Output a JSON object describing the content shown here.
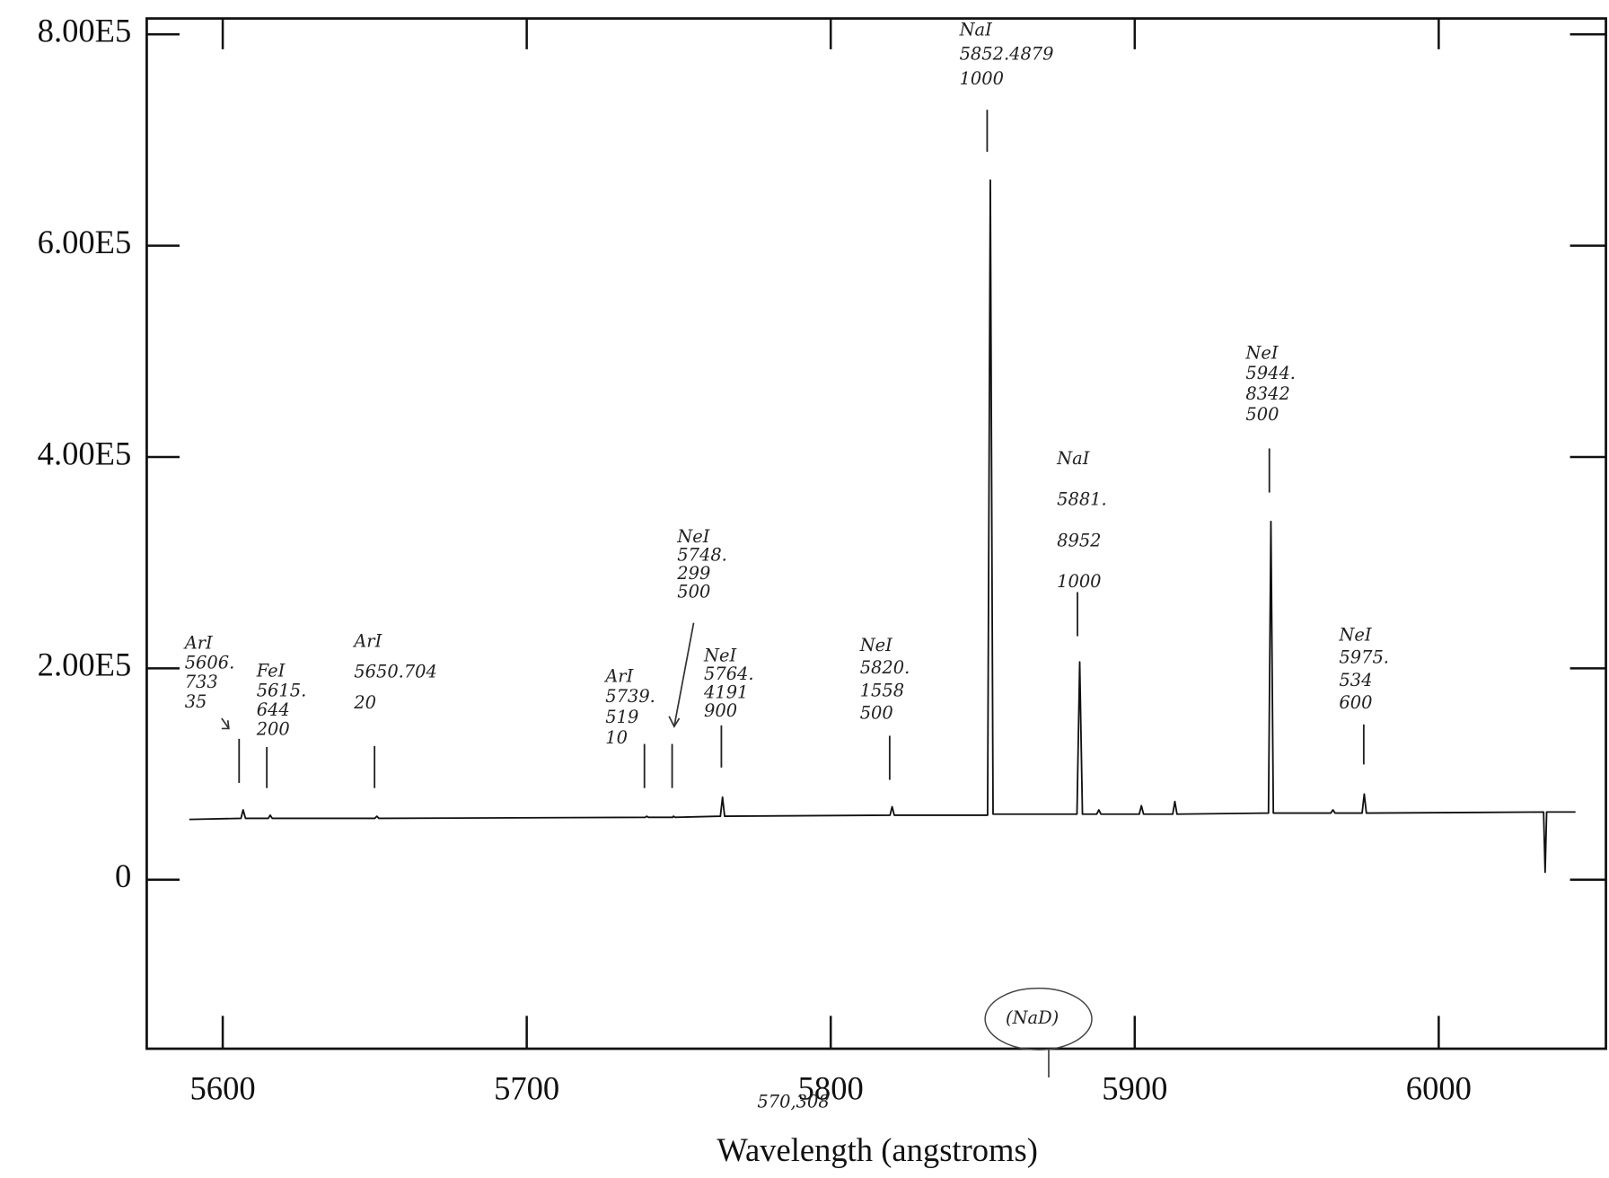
{
  "chart_data": {
    "type": "line",
    "xlabel": "Wavelength (angstroms)",
    "x": [
      5589,
      5606,
      5606.7,
      5607.5,
      5615,
      5615.6,
      5616.3,
      5650,
      5650.7,
      5651.4,
      5739,
      5739.5,
      5740,
      5748,
      5748.3,
      5748.8,
      5763.7,
      5764.4,
      5765.1,
      5819.5,
      5820.2,
      5820.9,
      5851.6,
      5852.5,
      5853.4,
      5881,
      5881.9,
      5882.8,
      5887.5,
      5888.2,
      5888.9,
      5901.5,
      5902.2,
      5902.9,
      5912.5,
      5913.2,
      5913.9,
      5944,
      5944.8,
      5945.6,
      5964.5,
      5965.2,
      5965.9,
      5974.8,
      5975.5,
      5976.2,
      6034.5,
      6035,
      6035.5,
      6045
    ],
    "values": [
      57000,
      58000,
      66000,
      58000,
      58000,
      61000,
      58000,
      58000,
      60000,
      58000,
      59000,
      60000,
      59000,
      59000,
      60000,
      59000,
      60000,
      78000,
      60000,
      61000,
      69000,
      61000,
      61000,
      662000,
      62000,
      62000,
      206000,
      62000,
      62000,
      66000,
      62000,
      62000,
      70000,
      62000,
      62000,
      74000,
      62000,
      63000,
      339000,
      63000,
      63000,
      66000,
      63000,
      63000,
      81000,
      63000,
      64000,
      7000,
      64000,
      64000
    ],
    "color": "#111111",
    "xlim": [
      5575,
      6055
    ],
    "ylim": [
      -160000,
      815000
    ],
    "xticks": [
      5600,
      5700,
      5800,
      5900,
      6000
    ],
    "yticks": [
      {
        "value": 0,
        "label": "0"
      },
      {
        "value": 200000,
        "label": "2.00E5"
      },
      {
        "value": 400000,
        "label": "4.00E5"
      },
      {
        "value": 600000,
        "label": "6.00E5"
      },
      {
        "value": 800000,
        "label": "8.00E5"
      }
    ],
    "annotations": [
      [
        "ArI",
        "5606.",
        "733",
        "35"
      ],
      [
        "FeI",
        "5615.",
        "644",
        "200"
      ],
      [
        "ArI",
        "5650.704",
        "20"
      ],
      [
        "ArI",
        "5739.",
        "519",
        "10"
      ],
      [
        "NeI",
        "5748.",
        "299",
        "500"
      ],
      [
        "NeI",
        "5764.",
        "4191",
        "900"
      ],
      [
        "NeI",
        "5820.",
        "1558",
        "500"
      ],
      [
        "NaI",
        "5852.4879",
        "1000"
      ],
      [
        "NaI",
        "5881.",
        "8952",
        "1000"
      ],
      [
        "NeI",
        "5944.",
        "8342",
        "500"
      ],
      [
        "NeI",
        "5975.",
        "534",
        "600"
      ],
      [
        "(NaD)"
      ],
      [
        "570,308"
      ]
    ]
  }
}
